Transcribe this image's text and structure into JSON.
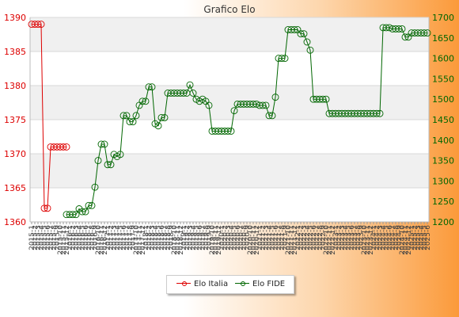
{
  "chart_data": {
    "type": "line",
    "title": "Grafico Elo",
    "n_points": 126,
    "left_axis": {
      "min": 1360,
      "max": 1390,
      "step": 5,
      "ticks": [
        "1360",
        "1365",
        "1370",
        "1375",
        "1380",
        "1385",
        "1390"
      ],
      "color": "#dd0000"
    },
    "right_axis": {
      "min": 1200,
      "max": 1700,
      "step": 50,
      "ticks": [
        "1200",
        "1250",
        "1300",
        "1350",
        "1400",
        "1450",
        "1500",
        "1550",
        "1600",
        "1650",
        "1700"
      ],
      "color": "#006600"
    },
    "x_tick_labels": [
      "2015-1",
      "2015-2",
      "2015-3",
      "2015-4",
      "2015-5",
      "2015-6",
      "2015-7",
      "2015-8",
      "2015-9",
      "2015-10",
      "2015-11",
      "2015-12",
      "2016-1",
      "2016-2",
      "2016-3",
      "2016-4",
      "2016-5",
      "2016-6",
      "2016-7",
      "2016-8",
      "2016-9",
      "2016-10",
      "2016-11",
      "2016-12",
      "2017-1",
      "2017-2",
      "2017-3",
      "2017-4",
      "2017-5",
      "2017-6",
      "2017-7",
      "2017-8",
      "2017-9",
      "2017-10",
      "2017-11",
      "2017-12",
      "2018-1",
      "2018-2",
      "2018-3",
      "2018-4",
      "2018-5",
      "2018-6",
      "2018-7",
      "2018-8",
      "2018-9",
      "2018-10",
      "2018-11",
      "2018-12",
      "2019-1",
      "2019-2",
      "2019-3",
      "2019-4",
      "2019-5",
      "2019-6",
      "2019-7",
      "2019-8",
      "2019-9",
      "2019-10",
      "2019-11",
      "2019-12",
      "2020-1",
      "2020-2",
      "2020-3",
      "2020-4",
      "2020-5",
      "2020-6",
      "2020-7",
      "2020-8",
      "2020-9",
      "2020-10",
      "2020-11",
      "2020-12",
      "2021-1",
      "2021-2",
      "2021-3",
      "2021-4",
      "2021-5",
      "2021-6",
      "2021-7",
      "2021-8",
      "2021-9",
      "2021-10",
      "2021-11",
      "2021-12",
      "2022-1",
      "2022-2",
      "2022-3",
      "2022-4",
      "2022-5",
      "2022-6",
      "2022-7",
      "2022-8",
      "2022-9",
      "2022-10",
      "2022-11",
      "2022-12",
      "2023-1",
      "2023-2",
      "2023-3",
      "2023-4",
      "2023-5",
      "2023-6",
      "2023-7",
      "2023-8",
      "2023-9",
      "2023-10",
      "2023-11",
      "2023-12",
      "2024-1",
      "2024-2",
      "2024-3",
      "2024-4",
      "2024-5",
      "2024-6",
      "2024-7",
      "2024-8",
      "2024-9",
      "2024-10",
      "2024-11",
      "2024-12",
      "2025-1",
      "2025-2",
      "2025-3",
      "2025-4",
      "2025-5",
      "2025-6"
    ],
    "series": [
      {
        "name": "Elo Italia",
        "axis": "left",
        "color": "#dd0000",
        "points": [
          [
            0,
            1389
          ],
          [
            1,
            1389
          ],
          [
            2,
            1389
          ],
          [
            3,
            1389
          ],
          [
            4,
            1362
          ],
          [
            5,
            1362
          ],
          [
            6,
            1371
          ],
          [
            7,
            1371
          ],
          [
            8,
            1371
          ],
          [
            9,
            1371
          ],
          [
            10,
            1371
          ],
          [
            11,
            1371
          ]
        ]
      },
      {
        "name": "Elo FIDE",
        "axis": "right",
        "color": "#006600",
        "points": [
          [
            11,
            1218
          ],
          [
            12,
            1218
          ],
          [
            13,
            1218
          ],
          [
            14,
            1218
          ],
          [
            15,
            1232
          ],
          [
            16,
            1225
          ],
          [
            17,
            1225
          ],
          [
            18,
            1240
          ],
          [
            19,
            1240
          ],
          [
            20,
            1285
          ],
          [
            21,
            1350
          ],
          [
            22,
            1390
          ],
          [
            23,
            1390
          ],
          [
            24,
            1340
          ],
          [
            25,
            1340
          ],
          [
            26,
            1365
          ],
          [
            27,
            1360
          ],
          [
            28,
            1365
          ],
          [
            29,
            1460
          ],
          [
            30,
            1460
          ],
          [
            31,
            1445
          ],
          [
            32,
            1445
          ],
          [
            33,
            1460
          ],
          [
            34,
            1485
          ],
          [
            35,
            1495
          ],
          [
            36,
            1495
          ],
          [
            37,
            1530
          ],
          [
            38,
            1530
          ],
          [
            39,
            1440
          ],
          [
            40,
            1435
          ],
          [
            41,
            1455
          ],
          [
            42,
            1455
          ],
          [
            43,
            1515
          ],
          [
            44,
            1515
          ],
          [
            45,
            1515
          ],
          [
            46,
            1515
          ],
          [
            47,
            1515
          ],
          [
            48,
            1515
          ],
          [
            49,
            1515
          ],
          [
            50,
            1535
          ],
          [
            51,
            1515
          ],
          [
            52,
            1500
          ],
          [
            53,
            1495
          ],
          [
            54,
            1500
          ],
          [
            55,
            1495
          ],
          [
            56,
            1485
          ],
          [
            57,
            1422
          ],
          [
            58,
            1422
          ],
          [
            59,
            1422
          ],
          [
            60,
            1422
          ],
          [
            61,
            1422
          ],
          [
            62,
            1422
          ],
          [
            63,
            1422
          ],
          [
            64,
            1472
          ],
          [
            65,
            1488
          ],
          [
            66,
            1488
          ],
          [
            67,
            1488
          ],
          [
            68,
            1488
          ],
          [
            69,
            1488
          ],
          [
            70,
            1488
          ],
          [
            71,
            1488
          ],
          [
            72,
            1485
          ],
          [
            73,
            1485
          ],
          [
            74,
            1485
          ],
          [
            75,
            1460
          ],
          [
            76,
            1460
          ],
          [
            77,
            1505
          ],
          [
            78,
            1600
          ],
          [
            79,
            1600
          ],
          [
            80,
            1600
          ],
          [
            81,
            1670
          ],
          [
            82,
            1670
          ],
          [
            83,
            1670
          ],
          [
            84,
            1670
          ],
          [
            85,
            1660
          ],
          [
            86,
            1660
          ],
          [
            87,
            1640
          ],
          [
            88,
            1620
          ],
          [
            89,
            1500
          ],
          [
            90,
            1500
          ],
          [
            91,
            1500
          ],
          [
            92,
            1500
          ],
          [
            93,
            1500
          ],
          [
            94,
            1465
          ],
          [
            95,
            1465
          ],
          [
            96,
            1465
          ],
          [
            97,
            1465
          ],
          [
            98,
            1465
          ],
          [
            99,
            1465
          ],
          [
            100,
            1465
          ],
          [
            101,
            1465
          ],
          [
            102,
            1465
          ],
          [
            103,
            1465
          ],
          [
            104,
            1465
          ],
          [
            105,
            1465
          ],
          [
            106,
            1465
          ],
          [
            107,
            1465
          ],
          [
            108,
            1465
          ],
          [
            109,
            1465
          ],
          [
            110,
            1465
          ],
          [
            111,
            1675
          ],
          [
            112,
            1675
          ],
          [
            113,
            1675
          ],
          [
            114,
            1672
          ],
          [
            115,
            1672
          ],
          [
            116,
            1672
          ],
          [
            117,
            1672
          ],
          [
            118,
            1652
          ],
          [
            119,
            1652
          ],
          [
            120,
            1662
          ],
          [
            121,
            1662
          ],
          [
            122,
            1662
          ],
          [
            123,
            1662
          ],
          [
            124,
            1662
          ],
          [
            125,
            1662
          ]
        ]
      }
    ],
    "grid": true,
    "legend_position": "bottom-center"
  }
}
